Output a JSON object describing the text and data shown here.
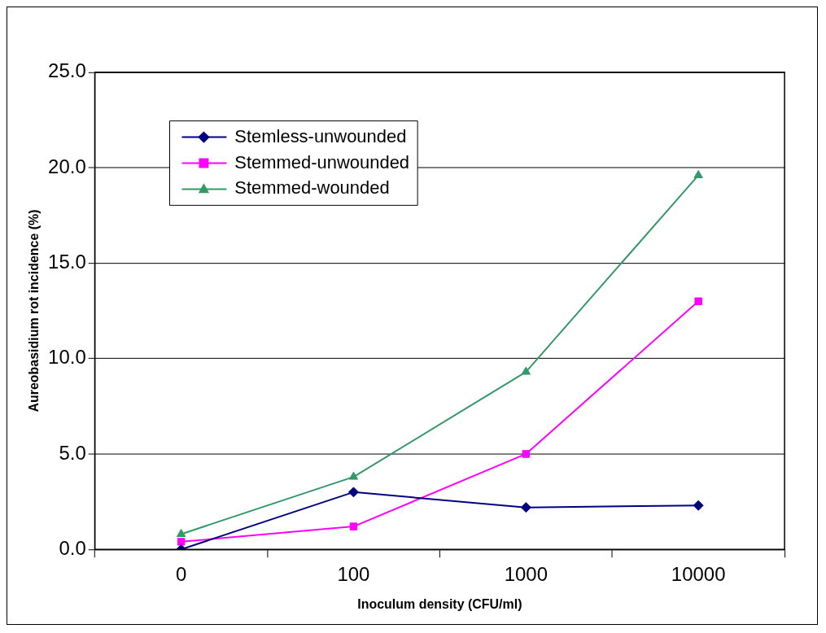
{
  "chart_data": {
    "type": "line",
    "xlabel": "Inoculum density (CFU/ml)",
    "ylabel": "Aureobasidium rot incidence (%)",
    "categories": [
      "0",
      "100",
      "1000",
      "10000"
    ],
    "ylim": [
      0,
      25
    ],
    "yticks": [
      {
        "value": 0,
        "label": "0.0"
      },
      {
        "value": 5,
        "label": "5.0"
      },
      {
        "value": 10,
        "label": "10.0"
      },
      {
        "value": 15,
        "label": "15.0"
      },
      {
        "value": 20,
        "label": "20.0"
      },
      {
        "value": 25,
        "label": "25.0"
      }
    ],
    "grid": "y",
    "legend": "top left",
    "line_style": "solid",
    "series": [
      {
        "name": "Stemless-unwounded",
        "color": "#000080",
        "marker": "diamond",
        "values": [
          0.0,
          3.0,
          2.2,
          2.3
        ]
      },
      {
        "name": "Stemmed-unwounded",
        "color": "#ff00ff",
        "marker": "square",
        "values": [
          0.4,
          1.2,
          5.0,
          13.0
        ]
      },
      {
        "name": "Stemmed-wounded",
        "color": "#339966",
        "marker": "triangle",
        "values": [
          0.8,
          3.8,
          9.3,
          19.6
        ]
      }
    ]
  }
}
